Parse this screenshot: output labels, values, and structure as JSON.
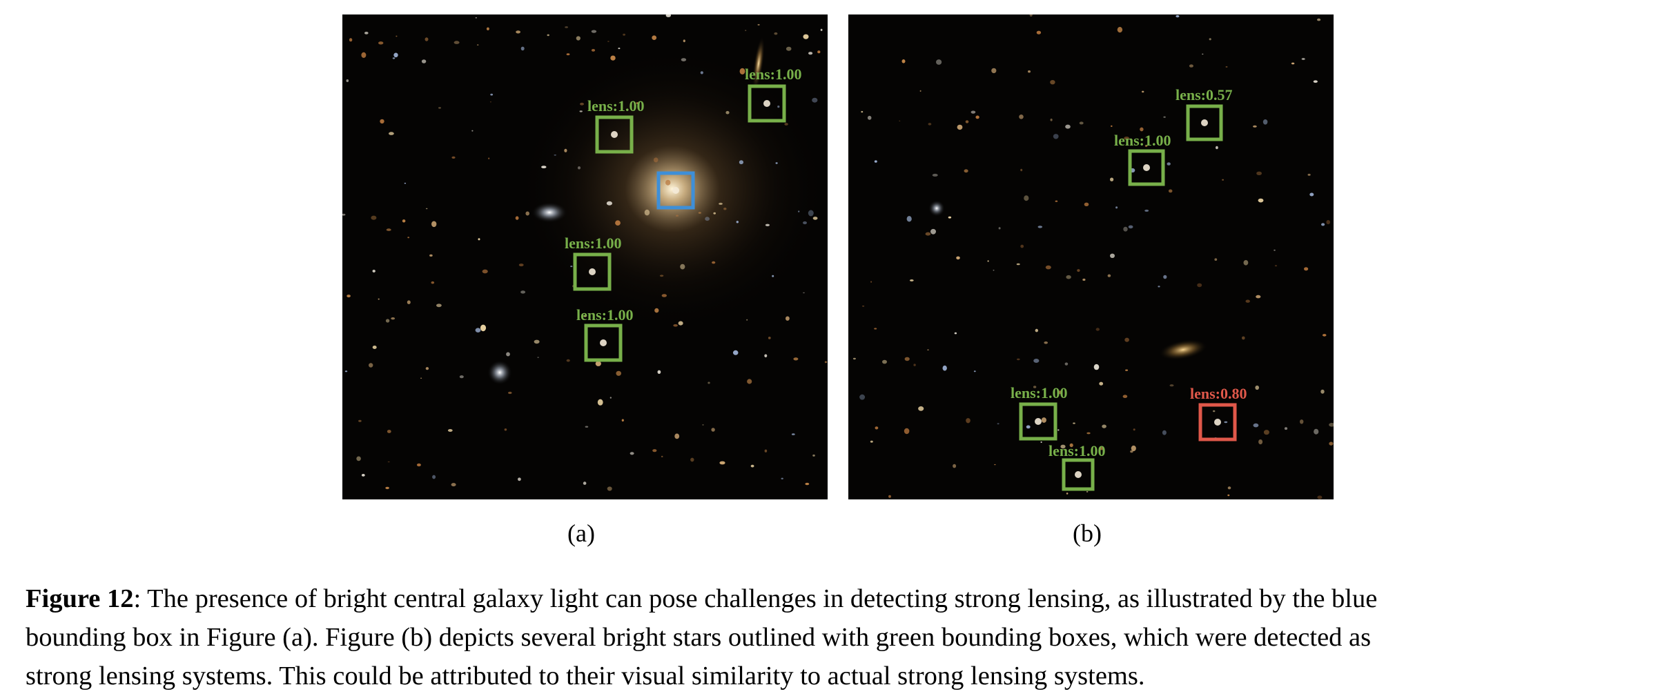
{
  "figure": {
    "panels": [
      {
        "id": "a",
        "label": "(a)",
        "detections": [
          {
            "label": "lens:1.00",
            "color": "#78b04a"
          },
          {
            "label": "lens:1.00",
            "color": "#78b04a"
          },
          {
            "label": "",
            "color": "#3e8fd8"
          },
          {
            "label": "lens:1.00",
            "color": "#78b04a"
          },
          {
            "label": "lens:1.00",
            "color": "#78b04a"
          }
        ]
      },
      {
        "id": "b",
        "label": "(b)",
        "detections": [
          {
            "label": "lens:0.57",
            "color": "#78b04a"
          },
          {
            "label": "lens:1.00",
            "color": "#78b04a"
          },
          {
            "label": "lens:1.00",
            "color": "#78b04a"
          },
          {
            "label": "lens:0.80",
            "color": "#e0584a"
          },
          {
            "label": "lens:1.00",
            "color": "#78b04a"
          }
        ]
      }
    ],
    "caption": {
      "lead": "Figure 12",
      "line1": ": The presence of bright central galaxy light can pose challenges in detecting strong lensing, as illustrated by the blue",
      "line2": "bounding box in Figure (a). Figure (b) depicts several bright stars outlined with green bounding boxes, which were detected as",
      "line3": "strong lensing systems. This could be attributed to their visual similarity to actual strong lensing systems."
    }
  }
}
